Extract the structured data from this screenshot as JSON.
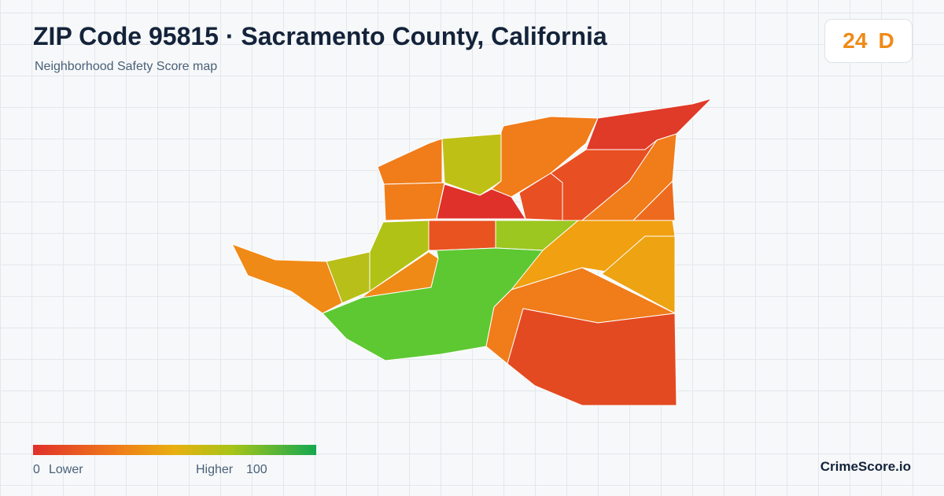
{
  "header": {
    "title": "ZIP Code 95815 · Sacramento County, California",
    "subtitle": "Neighborhood Safety Score map"
  },
  "score": {
    "value": "24",
    "grade": "D"
  },
  "legend": {
    "min": "0",
    "min_label": "Lower",
    "max_label": "Higher",
    "max": "100"
  },
  "brand": "CrimeScore.io"
}
